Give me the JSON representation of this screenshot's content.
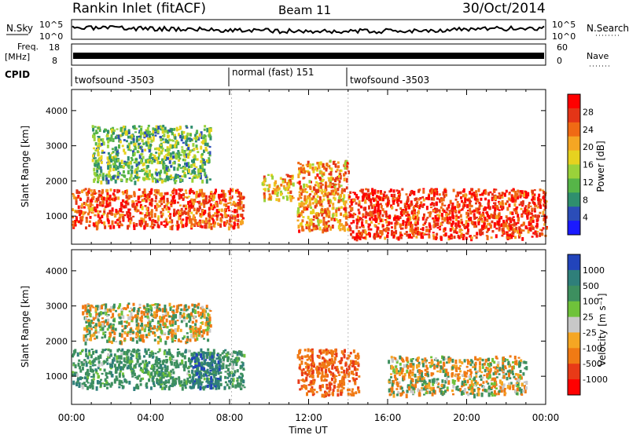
{
  "header": {
    "station": "Rankin Inlet (fitACF)",
    "beam": "Beam 11",
    "date": "30/Oct/2014"
  },
  "noise_panel": {
    "left_label": "N.Sky",
    "left_ticks": [
      "10^5",
      "10^0"
    ],
    "right_label": "N.Search",
    "right_ticks": [
      "10^5",
      "10^0"
    ]
  },
  "freq_panel": {
    "left_label_top": "Freq.",
    "left_label_unit": "[MHz]",
    "left_ticks": [
      "18",
      "8"
    ],
    "right_label": "Nave",
    "right_ticks": [
      "60",
      "0"
    ]
  },
  "cpid": {
    "label": "CPID",
    "segments": [
      {
        "text": "twofsound -3503",
        "start_hour": 0
      },
      {
        "text": "normal (fast) 151",
        "start_hour": 8.1
      },
      {
        "text": "twofsound -3503",
        "start_hour": 14
      }
    ]
  },
  "chart_data": [
    {
      "type": "heatmap",
      "title": "",
      "xlabel": "",
      "ylabel": "Slant Range [km]",
      "x_ticks": [
        "00:00",
        "04:00",
        "08:00",
        "12:00",
        "16:00",
        "20:00",
        "00:00"
      ],
      "xlim_hours": [
        0,
        24
      ],
      "ylim": [
        200,
        4600
      ],
      "y_ticks": [
        1000,
        2000,
        3000,
        4000
      ],
      "colorbar": {
        "label": "Power [dB]",
        "ticks": [
          "4",
          "8",
          "12",
          "16",
          "20",
          "24",
          "28"
        ],
        "range": [
          0,
          32
        ],
        "colors": [
          "#1a1aff",
          "#2b4db8",
          "#2f8f6e",
          "#56b548",
          "#9ad23a",
          "#e6d21f",
          "#f5a623",
          "#f06a14",
          "#e43517",
          "#ff0000"
        ]
      },
      "regions": [
        {
          "t0": 0,
          "t1": 8.7,
          "r0": 700,
          "r1": 1800,
          "value": 26
        },
        {
          "t0": 9.6,
          "t1": 11.2,
          "r0": 1500,
          "r1": 2200,
          "value": 20
        },
        {
          "t0": 11.4,
          "t1": 14,
          "r0": 600,
          "r1": 2600,
          "value": 22
        },
        {
          "t0": 14,
          "t1": 24,
          "r0": 400,
          "r1": 1800,
          "value": 28
        },
        {
          "t0": 1,
          "t1": 7,
          "r0": 2000,
          "r1": 3600,
          "value": 12
        }
      ]
    },
    {
      "type": "heatmap",
      "title": "",
      "xlabel": "Time UT",
      "ylabel": "Slant Range [km]",
      "x_ticks": [
        "00:00",
        "04:00",
        "08:00",
        "12:00",
        "16:00",
        "20:00",
        "00:00"
      ],
      "xlim_hours": [
        0,
        24
      ],
      "ylim": [
        200,
        4600
      ],
      "y_ticks": [
        1000,
        2000,
        3000,
        4000
      ],
      "colorbar": {
        "label": "Velocity [m s⁻¹]",
        "ticks": [
          "1000",
          "500",
          "100",
          "25",
          "-25",
          "-100",
          "-500",
          "-1000"
        ],
        "colors": [
          "#2244bb",
          "#2f7f7a",
          "#3d8f5f",
          "#6fc23a",
          "#c8c8c8",
          "#f5a623",
          "#f07a14",
          "#e83a17",
          "#ff0000"
        ]
      },
      "regions": [
        {
          "t0": 0,
          "t1": 8.7,
          "r0": 700,
          "r1": 1800,
          "value": 300
        },
        {
          "t0": 6,
          "t1": 7.5,
          "r0": 700,
          "r1": 1700,
          "value": 900
        },
        {
          "t0": 11.4,
          "t1": 14.5,
          "r0": 500,
          "r1": 1800,
          "value": -400
        },
        {
          "t0": 16,
          "t1": 23,
          "r0": 500,
          "r1": 1600,
          "value": 0
        },
        {
          "t0": 0.5,
          "t1": 7,
          "r0": 2000,
          "r1": 3100,
          "value": 0
        }
      ]
    }
  ]
}
